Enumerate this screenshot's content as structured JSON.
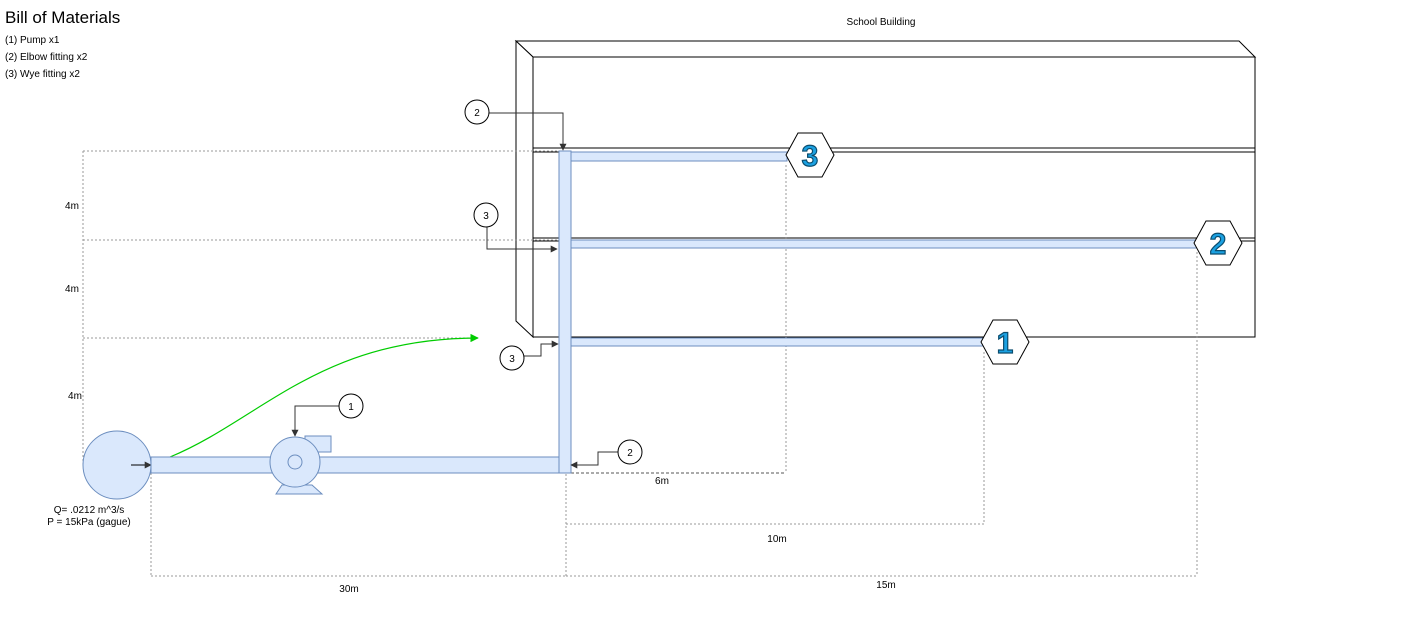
{
  "bill_of_materials": {
    "title": "Bill of Materials",
    "items": [
      "(1) Pump x1",
      "(2) Elbow fitting x2",
      "(3) Wye fitting x2"
    ]
  },
  "building": {
    "label": "School Building"
  },
  "source": {
    "flow": "Q= .0212 m^3/s",
    "pressure": "P = 15kPa (gague)"
  },
  "callouts": [
    "2",
    "3",
    "3",
    "1",
    "2"
  ],
  "outlets": [
    "3",
    "2",
    "1"
  ],
  "dimensions": {
    "vertical": [
      "4m",
      "4m",
      "4m"
    ],
    "horizontal": [
      "6m",
      "10m",
      "15m",
      "30m"
    ]
  },
  "colors": {
    "pipe_fill": "#dae8fc",
    "pipe_stroke": "#6c8ebf",
    "flow_line": "#00cc00",
    "outlet_number": "#1ba1e2"
  }
}
